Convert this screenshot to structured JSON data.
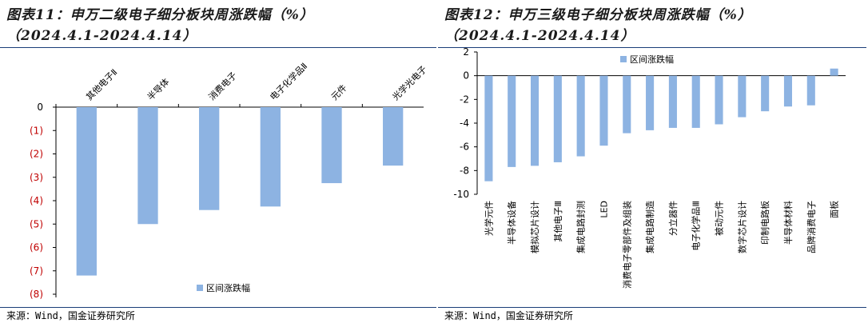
{
  "left": {
    "title_line1": "图表11：申万二级电子细分板块周涨跌幅（%）",
    "title_line2": "（2024.4.1-2024.4.14）",
    "source": "来源：Wind，国金证券研究所"
  },
  "right": {
    "title_line1": "图表12：申万三级电子细分板块周涨跌幅（%）",
    "title_line2": "（2024.4.1-2024.4.14）",
    "source": "来源：Wind，国金证券研究所"
  },
  "chart_data": [
    {
      "type": "bar",
      "categories": [
        "其他电子Ⅱ",
        "半导体",
        "消费电子",
        "电子化学品Ⅱ",
        "元件",
        "光学光电子"
      ],
      "series": [
        {
          "name": "区间涨跌幅",
          "values": [
            -7.2,
            -5.0,
            -4.4,
            -4.25,
            -3.25,
            -2.5
          ]
        }
      ],
      "ylim": [
        -8,
        0
      ],
      "yticks": [
        "0",
        "(1)",
        "(2)",
        "(3)",
        "(4)",
        "(5)",
        "(6)",
        "(7)",
        "(8)"
      ],
      "legend": "bottom-center",
      "bar_color": "#8db3e2",
      "grid": false
    },
    {
      "type": "bar",
      "categories": [
        "光学元件",
        "半导体设备",
        "模拟芯片设计",
        "其他电子Ⅲ",
        "集成电路封测",
        "LED",
        "消费电子零部件及组装",
        "集成电路制造",
        "分立器件",
        "电子化学品Ⅲ",
        "被动元件",
        "数字芯片设计",
        "印制电路板",
        "半导体材料",
        "品牌消费电子",
        "面板"
      ],
      "series": [
        {
          "name": "区间涨跌幅",
          "values": [
            -8.9,
            -7.7,
            -7.6,
            -7.3,
            -6.8,
            -5.9,
            -4.85,
            -4.6,
            -4.4,
            -4.4,
            -4.1,
            -3.5,
            -3.0,
            -2.6,
            -2.5,
            0.6
          ]
        }
      ],
      "ylim": [
        -10,
        2
      ],
      "yticks": [
        "2",
        "0",
        "-2",
        "-4",
        "-6",
        "-8",
        "-10"
      ],
      "legend": "top-left",
      "bar_color": "#8db3e2",
      "grid": false
    }
  ]
}
